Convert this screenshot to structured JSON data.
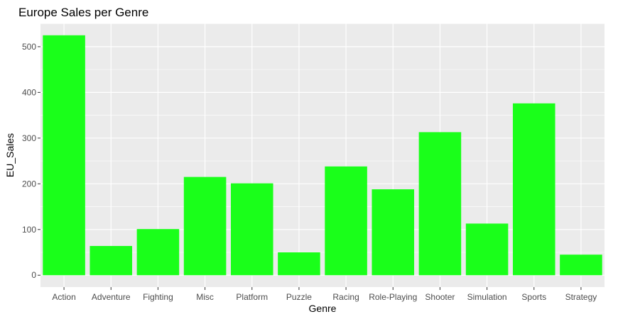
{
  "chart_data": {
    "type": "bar",
    "title": "Europe Sales per Genre",
    "xlabel": "Genre",
    "ylabel": "EU_Sales",
    "categories": [
      "Action",
      "Adventure",
      "Fighting",
      "Misc",
      "Platform",
      "Puzzle",
      "Racing",
      "Role-Playing",
      "Shooter",
      "Simulation",
      "Sports",
      "Strategy"
    ],
    "values": [
      525,
      64,
      101,
      215,
      201,
      50,
      238,
      188,
      313,
      113,
      376,
      45
    ],
    "ylim": [
      -26,
      551
    ],
    "yticks": [
      0,
      100,
      200,
      300,
      400,
      500
    ],
    "grid": true,
    "legend": "none",
    "colors": {
      "bar": "#1aff1a",
      "panel_background": "#ebebeb",
      "grid_major": "#ffffff",
      "tick_text": "#4d4d4d"
    }
  }
}
